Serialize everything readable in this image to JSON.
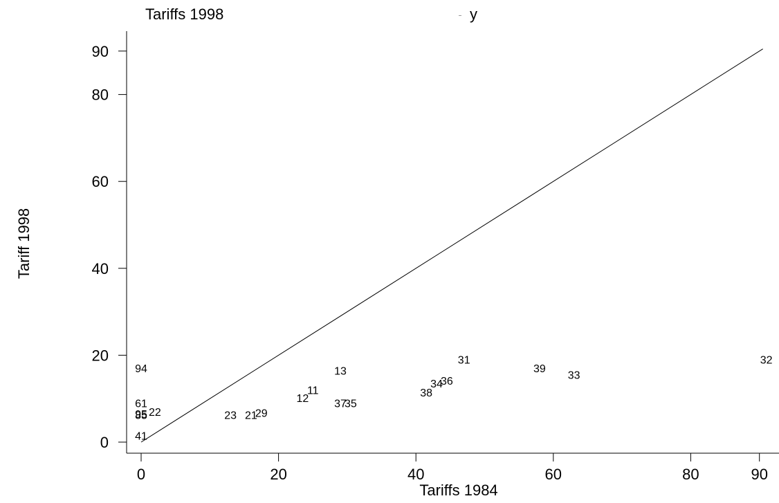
{
  "legend": {
    "title": "Tariffs 1998",
    "items": [
      "y"
    ]
  },
  "chart_data": {
    "type": "scatter",
    "xlabel": "Tariffs 1984",
    "ylabel": "Tariff 1998",
    "xlim": [
      0,
      92
    ],
    "ylim": [
      0,
      92
    ],
    "xticks": [
      0,
      20,
      40,
      60,
      80,
      90
    ],
    "yticks": [
      0,
      20,
      40,
      60,
      80,
      90
    ],
    "grid": false,
    "reference_line": {
      "from": [
        0,
        0
      ],
      "to": [
        90.5,
        90.5
      ]
    },
    "points": [
      {
        "label": "94",
        "x": 0.0,
        "y": 17.0
      },
      {
        "label": "61",
        "x": 0.0,
        "y": 9.0
      },
      {
        "label": "95",
        "x": 0.0,
        "y": 6.5
      },
      {
        "label": "85",
        "x": 0.0,
        "y": 6.3
      },
      {
        "label": "22",
        "x": 2.0,
        "y": 7.0
      },
      {
        "label": "41",
        "x": 0.0,
        "y": 1.5
      },
      {
        "label": "23",
        "x": 13.0,
        "y": 6.3
      },
      {
        "label": "21",
        "x": 16.0,
        "y": 6.3
      },
      {
        "label": "29",
        "x": 17.5,
        "y": 6.8
      },
      {
        "label": "12",
        "x": 23.5,
        "y": 10.2
      },
      {
        "label": "11",
        "x": 25.0,
        "y": 12.0
      },
      {
        "label": "13",
        "x": 29.0,
        "y": 16.5
      },
      {
        "label": "37",
        "x": 29.0,
        "y": 9.0
      },
      {
        "label": "35",
        "x": 30.5,
        "y": 9.0
      },
      {
        "label": "38",
        "x": 41.5,
        "y": 11.5
      },
      {
        "label": "34",
        "x": 43.0,
        "y": 13.5
      },
      {
        "label": "36",
        "x": 44.5,
        "y": 14.2
      },
      {
        "label": "31",
        "x": 47.0,
        "y": 19.0
      },
      {
        "label": "39",
        "x": 58.0,
        "y": 17.0
      },
      {
        "label": "33",
        "x": 63.0,
        "y": 15.5
      },
      {
        "label": "32",
        "x": 91.0,
        "y": 19.0
      }
    ]
  }
}
